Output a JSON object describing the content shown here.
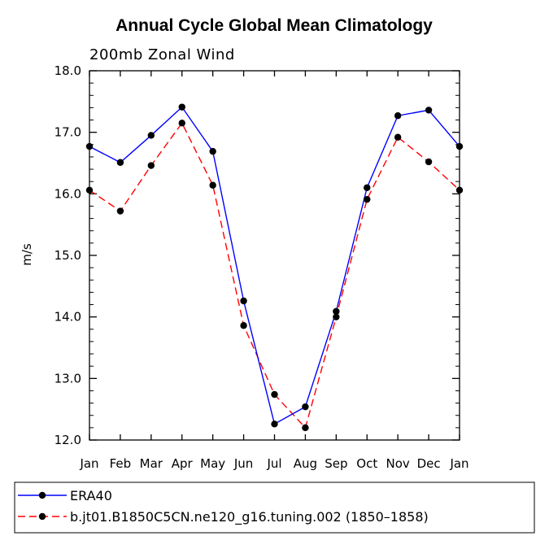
{
  "chart_data": {
    "type": "line",
    "title": "Annual Cycle Global Mean Climatology",
    "subtitle": "200mb Zonal Wind",
    "xlabel": "",
    "ylabel": "m/s",
    "categories": [
      "Jan",
      "Feb",
      "Mar",
      "Apr",
      "May",
      "Jun",
      "Jul",
      "Aug",
      "Sep",
      "Oct",
      "Nov",
      "Dec",
      "Jan"
    ],
    "ylim": [
      12.0,
      18.0
    ],
    "yticks": [
      "12.0",
      "13.0",
      "14.0",
      "15.0",
      "16.0",
      "17.0",
      "18.0"
    ],
    "grid": false,
    "legend_position": "bottom",
    "series": [
      {
        "name": "ERA40",
        "color": "#0000ff",
        "dash": "solid",
        "values": [
          16.77,
          16.51,
          16.95,
          17.41,
          16.69,
          14.26,
          12.26,
          12.54,
          14.09,
          16.1,
          17.27,
          17.36,
          16.77
        ]
      },
      {
        "name": "b.jt01.B1850C5CN.ne120_g16.tuning.002 (1850–1858)",
        "color": "#ff0000",
        "dash": "dashed",
        "values": [
          16.06,
          15.72,
          16.46,
          17.15,
          16.14,
          13.86,
          12.74,
          12.2,
          14.0,
          15.91,
          16.92,
          16.52,
          16.06
        ]
      }
    ]
  }
}
